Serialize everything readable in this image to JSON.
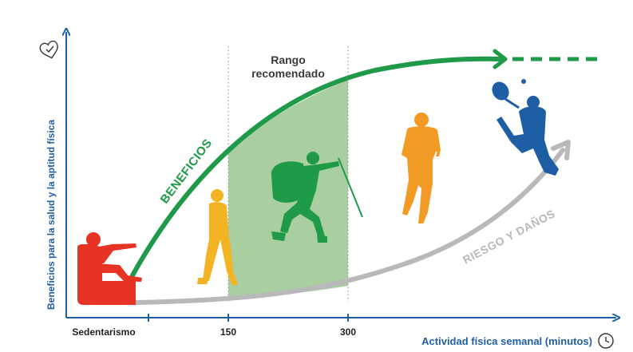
{
  "y_axis": {
    "label": "Beneficios para la salud y la aptitud física",
    "icon": "heart-check-icon"
  },
  "x_axis": {
    "label": "Actividad física semanal (minutos)",
    "icon": "clock-icon",
    "ticks": [
      "Sedentarismo",
      "150",
      "300"
    ]
  },
  "recommended_range": {
    "line1": "Rango",
    "line2": "recomendado"
  },
  "curves": {
    "benefits": {
      "label": "BENEFICIOS",
      "color": "#1e9a48"
    },
    "risk": {
      "label": "RIESGO Y DAÑOS",
      "color": "#b9b9bb"
    }
  },
  "colors": {
    "axis": "#1f5fa3",
    "band": "#a9cfa0",
    "sedentary_figure": "#e63323",
    "walker_figure": "#f2b422",
    "hiker_figure": "#1e9a48",
    "runner_figure": "#f39a24",
    "tennis_figure": "#1e5ea5"
  },
  "figures": [
    "sitting-person-icon",
    "walking-woman-icon",
    "hiker-icon",
    "runner-icon",
    "tennis-player-icon"
  ]
}
